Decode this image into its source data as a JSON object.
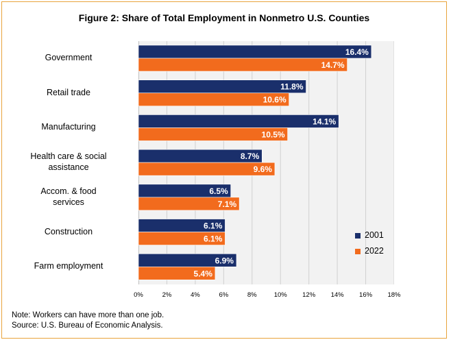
{
  "title": "Figure 2: Share of Total Employment in Nonmetro U.S. Counties",
  "note": "Note: Workers can have more than one job.",
  "source": "Source: U.S. Bureau of Economic Analysis.",
  "colors": {
    "s2001": "#1a2f6b",
    "s2022": "#f26b1d",
    "plot_bg": "#f2f2f2",
    "grid": "#d0d0d0",
    "border": "#e8a33a"
  },
  "chart_data": {
    "type": "bar",
    "orientation": "horizontal",
    "title": "Figure 2: Share of Total Employment in Nonmetro U.S. Counties",
    "categories": [
      [
        "Government"
      ],
      [
        "Retail trade"
      ],
      [
        "Manufacturing"
      ],
      [
        "Health care & social",
        "assistance"
      ],
      [
        "Accom. & food",
        "services"
      ],
      [
        "Construction"
      ],
      [
        "Farm employment"
      ]
    ],
    "series": [
      {
        "name": "2001",
        "values": [
          16.4,
          11.8,
          14.1,
          8.7,
          6.5,
          6.1,
          6.9
        ],
        "labels": [
          "16.4%",
          "11.8%",
          "14.1%",
          "8.7%",
          "6.5%",
          "6.1%",
          "6.9%"
        ]
      },
      {
        "name": "2022",
        "values": [
          14.7,
          10.6,
          10.5,
          9.6,
          7.1,
          6.1,
          5.4
        ],
        "labels": [
          "14.7%",
          "10.6%",
          "10.5%",
          "9.6%",
          "7.1%",
          "6.1%",
          "5.4%"
        ]
      }
    ],
    "xlim": [
      0,
      18
    ],
    "xticks": [
      "0%",
      "2%",
      "4%",
      "6%",
      "8%",
      "10%",
      "12%",
      "14%",
      "16%",
      "18%"
    ],
    "grid": true,
    "legend": "right"
  }
}
